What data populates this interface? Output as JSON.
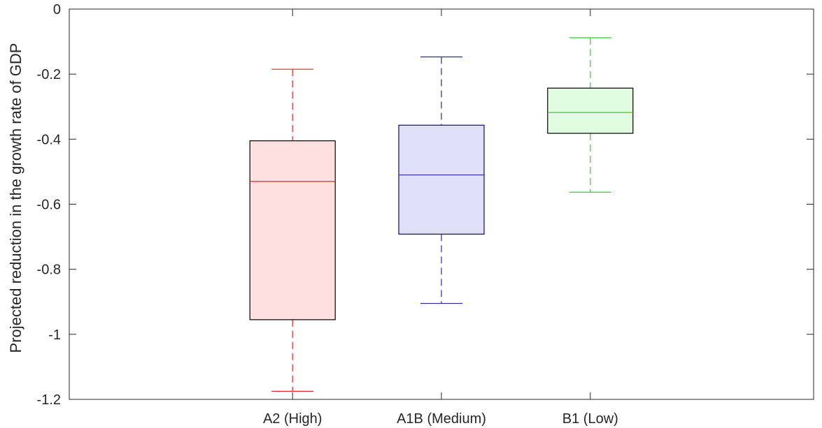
{
  "chart_data": {
    "type": "box",
    "title": "",
    "xlabel": "",
    "ylabel": "Projected reduction in the growth rate of GDP",
    "ylim": [
      -1.2,
      0
    ],
    "yticks": [
      0,
      -0.2,
      -0.4,
      -0.6,
      -0.8,
      -1,
      -1.2
    ],
    "ytick_labels": [
      "0",
      "-0.2",
      "-0.4",
      "-0.6",
      "-0.8",
      "-1",
      "-1.2"
    ],
    "grid": false,
    "categories": [
      "A2 (High)",
      "A1B (Medium)",
      "B1 (Low)"
    ],
    "boxes": [
      {
        "category": "A2 (High)",
        "whisker_low": -1.175,
        "q1": -0.955,
        "median": -0.53,
        "q3": -0.405,
        "whisker_high": -0.185,
        "color": "#e0262b",
        "fill": "#ffe0e0",
        "edge": "#000000"
      },
      {
        "category": "A1B (Medium)",
        "whisker_low": -0.905,
        "q1": -0.692,
        "median": -0.51,
        "q3": -0.357,
        "whisker_high": -0.147,
        "color": "#2a2aa0",
        "fill": "#e0e0fb",
        "edge": "#0a0a7a"
      },
      {
        "category": "B1 (Low)",
        "whisker_low": -0.563,
        "q1": -0.382,
        "median": -0.318,
        "q3": -0.243,
        "whisker_high": -0.088,
        "color": "#26d426",
        "fill": "#e0fce0",
        "edge": "#000000"
      }
    ]
  }
}
